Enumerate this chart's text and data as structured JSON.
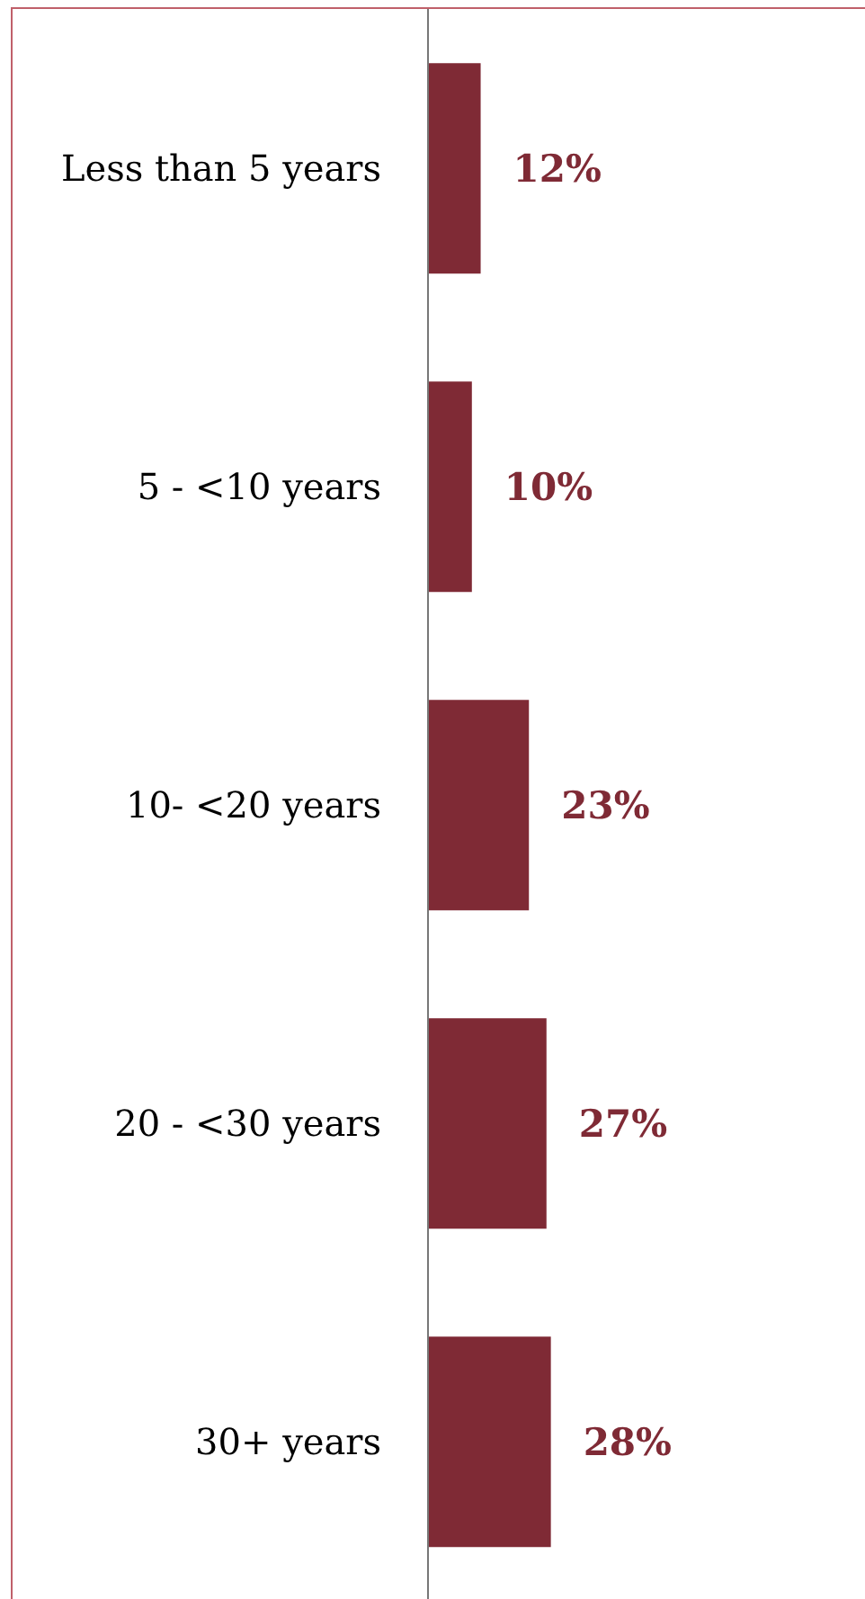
{
  "chart_data": {
    "type": "bar",
    "orientation": "horizontal",
    "categories": [
      "Less than 5 years",
      "5 - <10 years",
      "10- <20 years",
      "20 - <30 years",
      "30+ years"
    ],
    "values": [
      12,
      10,
      23,
      27,
      28
    ],
    "value_labels": [
      "12%",
      "10%",
      "23%",
      "27%",
      "28%"
    ],
    "color": "#7f2a35",
    "xlim": [
      0,
      100
    ],
    "grid": false
  }
}
